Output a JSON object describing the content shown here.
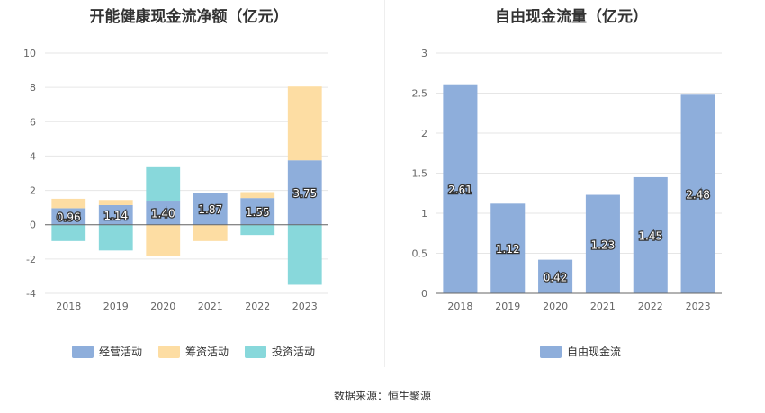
{
  "source_label": "数据来源：恒生聚源",
  "chart_data": [
    {
      "type": "bar",
      "stacked": true,
      "title": "开能健康现金流净额（亿元）",
      "categories": [
        "2018",
        "2019",
        "2020",
        "2021",
        "2022",
        "2023"
      ],
      "ylim": [
        -4,
        10
      ],
      "yticks": [
        -4,
        -2,
        0,
        2,
        4,
        6,
        8,
        10
      ],
      "grid": true,
      "legend_position": "bottom",
      "series": [
        {
          "name": "经营活动",
          "color": "#8eaedb",
          "values": [
            0.96,
            1.14,
            1.4,
            1.87,
            1.55,
            3.75
          ],
          "labels": [
            "0.96",
            "1.14",
            "1.40",
            "1.87",
            "1.55",
            "3.75"
          ]
        },
        {
          "name": "筹资活动",
          "color": "#fddda3",
          "values": [
            0.55,
            0.3,
            -1.8,
            -0.95,
            0.35,
            4.3
          ]
        },
        {
          "name": "投资活动",
          "color": "#88d8db",
          "values": [
            -0.95,
            -1.5,
            1.95,
            0.0,
            -0.6,
            -3.5
          ]
        }
      ]
    },
    {
      "type": "bar",
      "title": "自由现金流量（亿元）",
      "categories": [
        "2018",
        "2019",
        "2020",
        "2021",
        "2022",
        "2023"
      ],
      "ylim": [
        0,
        3
      ],
      "yticks": [
        "0",
        "0.5",
        "1",
        "1.5",
        "2",
        "2.5",
        "3"
      ],
      "grid": true,
      "legend_position": "bottom",
      "series": [
        {
          "name": "自由现金流",
          "color": "#8eaedb",
          "values": [
            2.61,
            1.12,
            0.42,
            1.23,
            1.45,
            2.48
          ],
          "labels": [
            "2.61",
            "1.12",
            "0.42",
            "1.23",
            "1.45",
            "2.48"
          ]
        }
      ]
    }
  ]
}
